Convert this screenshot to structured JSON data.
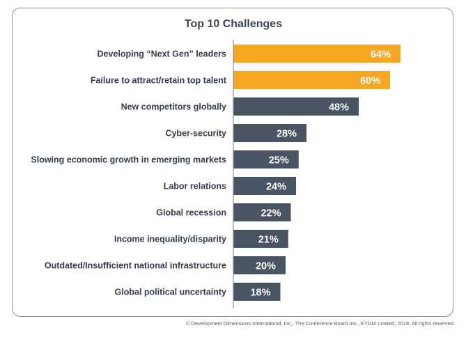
{
  "chart_data": {
    "type": "bar",
    "orientation": "horizontal",
    "title": "Top 10 Challenges",
    "categories": [
      "Developing “Next Gen” leaders",
      "Failure to attract/retain top talent",
      "New competitors globally",
      "Cyber-security",
      "Slowing economic growth in emerging markets",
      "Labor relations",
      "Global recession",
      "Income inequality/disparity",
      "Outdated/Insufficient national infrastructure",
      "Global political uncertainty"
    ],
    "values": [
      64,
      60,
      48,
      28,
      25,
      24,
      22,
      21,
      20,
      18
    ],
    "data_labels": [
      "64%",
      "60%",
      "48%",
      "28%",
      "25%",
      "24%",
      "22%",
      "21%",
      "20%",
      "18%"
    ],
    "highlighted": [
      true,
      true,
      false,
      false,
      false,
      false,
      false,
      false,
      false,
      false
    ],
    "xlim": [
      0,
      100
    ],
    "unit": "%",
    "xlabel": "",
    "ylabel": ""
  },
  "colors": {
    "highlight": "#f5a623",
    "default": "#4a5563",
    "axis": "#8a9099",
    "label_text": "#333c48",
    "value_text": "#ffffff"
  },
  "footer": {
    "copyright": "© Development Dimensions International, Inc., The Conference Board Inc., EYGM Limited, 2018. All rights reserved."
  }
}
